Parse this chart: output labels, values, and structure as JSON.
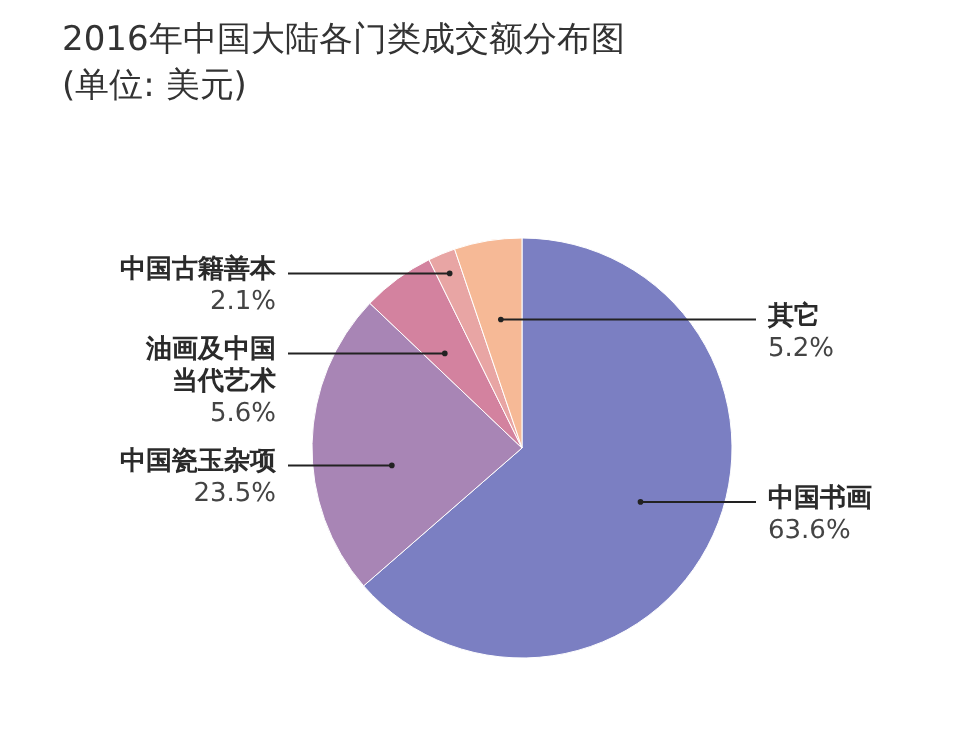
{
  "chart_data": {
    "type": "pie",
    "title": "2016年中国大陆各门类成交额分布图",
    "subtitle": "(单位: 美元)",
    "categories": [
      "中国书画",
      "中国瓷玉杂项",
      "油画及中国当代艺术",
      "中国古籍善本",
      "其它"
    ],
    "values": [
      63.6,
      23.5,
      5.6,
      2.1,
      5.2
    ],
    "value_labels": [
      "63.6%",
      "23.5%",
      "5.6%",
      "2.1%",
      "5.2%"
    ],
    "colors": [
      "#7b7fc2",
      "#a885b5",
      "#d3829f",
      "#e8a5a4",
      "#f6b996"
    ],
    "legend": false
  }
}
